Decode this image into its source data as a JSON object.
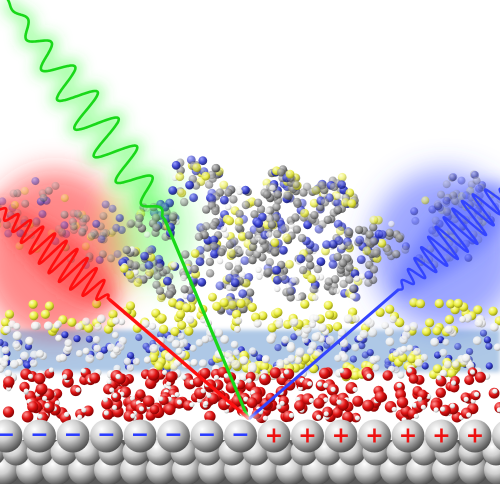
{
  "electrode": {
    "negative_charge_symbol": "−",
    "positive_charge_symbol": "+",
    "negative_charge_count": 8,
    "positive_charge_count": 7
  },
  "beams": [
    {
      "id": "infrared",
      "role": "incident",
      "color": "#ff1a1a"
    },
    {
      "id": "visible",
      "role": "incident",
      "color": "#1fdc1f"
    },
    {
      "id": "sum-frequency",
      "role": "outgoing",
      "color": "#3a4cff"
    }
  ],
  "colors": {
    "negative_charge": "#2a3cff",
    "positive_charge": "#ee1111",
    "electrode_atoms": "#c9c9c9",
    "water_oxygen": "#e01414",
    "hydrogen": "#f2f2f2",
    "nitrogen": "#2b34c8",
    "sulfur_fluorine": "#e9ec3c",
    "ionic_liquid_carbon": "#8a8a8a"
  }
}
